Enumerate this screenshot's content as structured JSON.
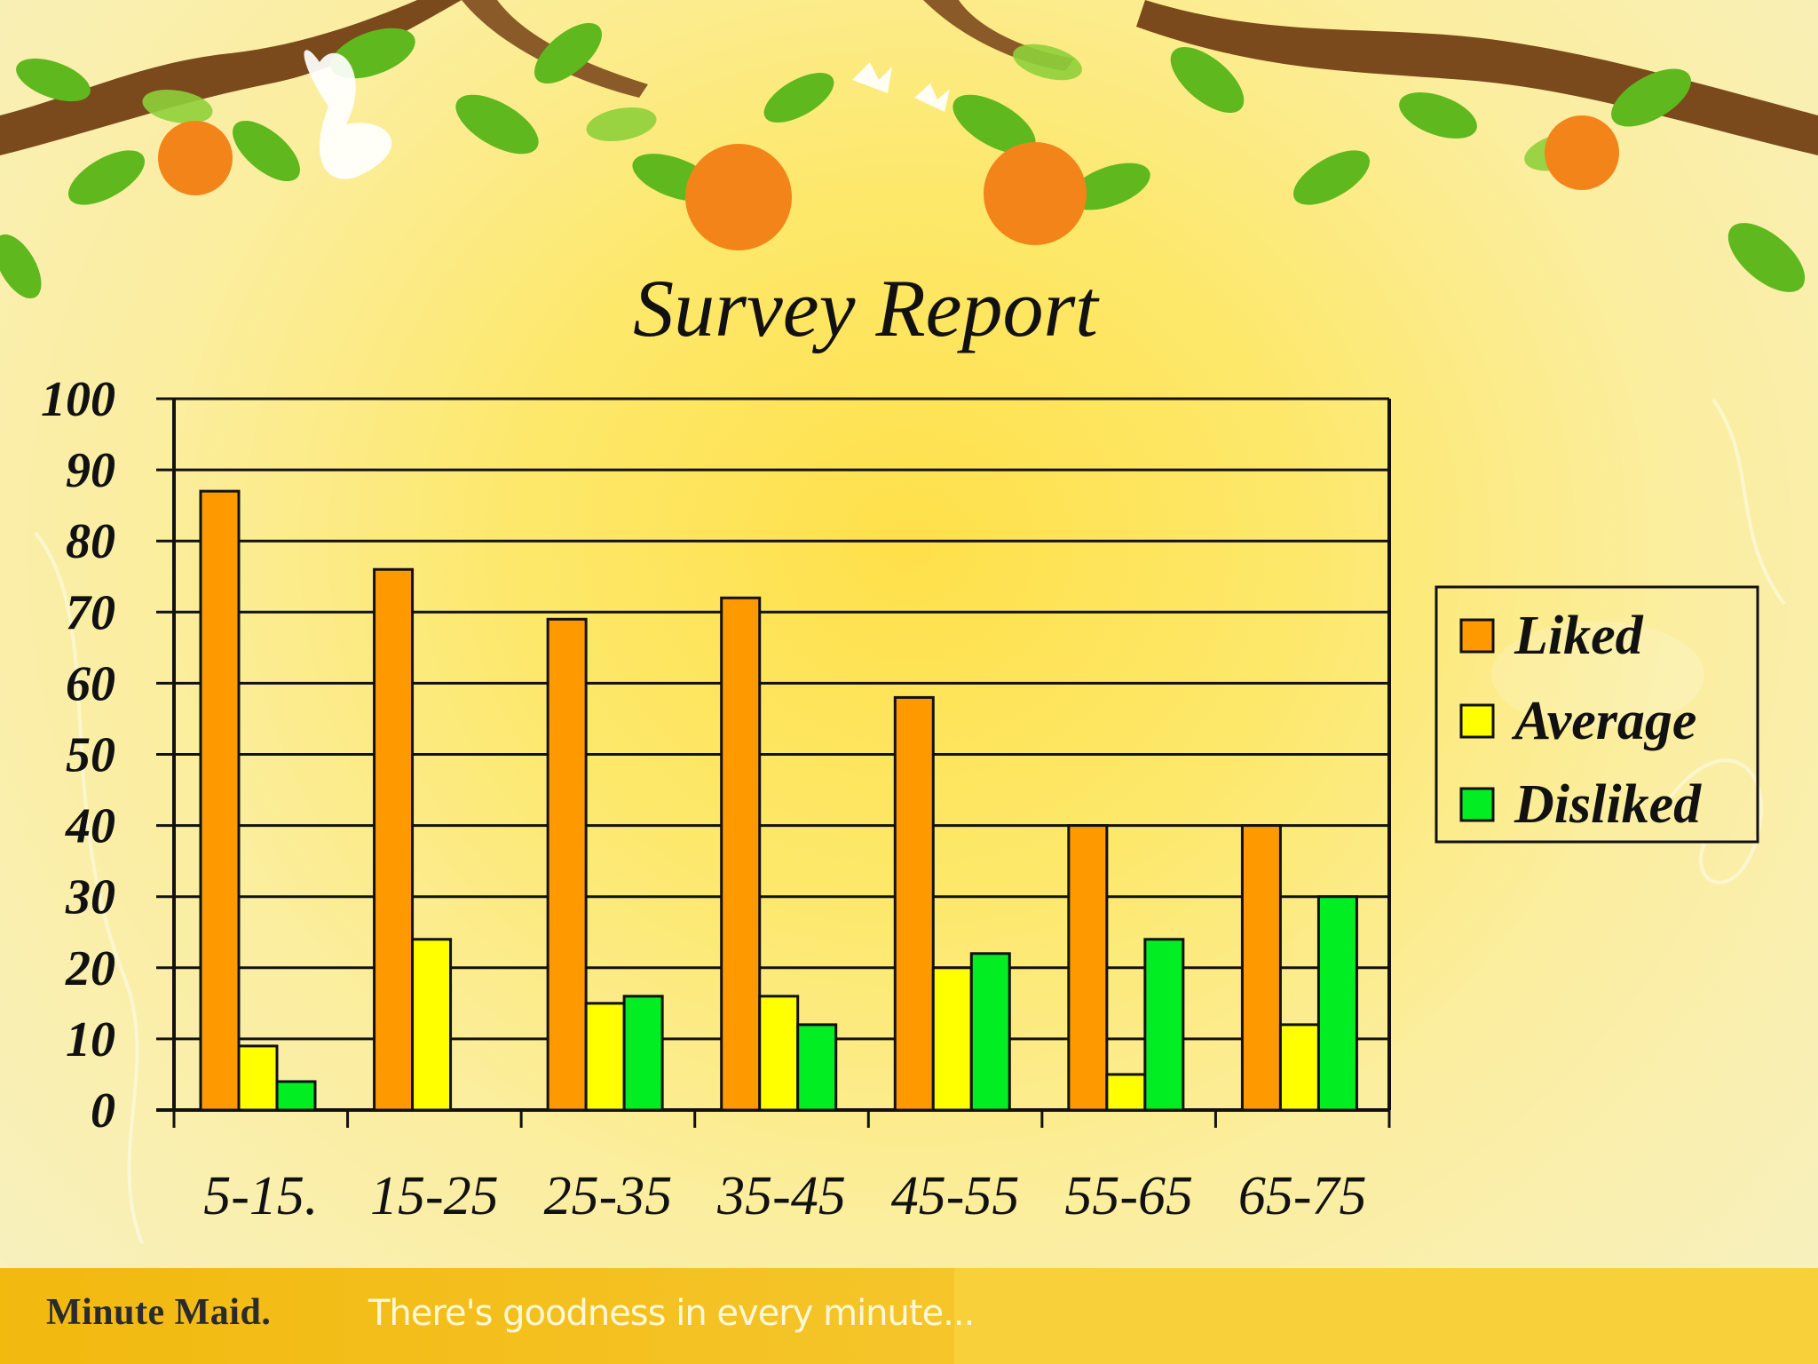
{
  "footer": {
    "brand": "Minute Maid.",
    "tagline": "There's goodness in every minute..."
  },
  "colors": {
    "liked": "#ff9900",
    "average": "#ffff00",
    "disliked": "#00ee22"
  },
  "chart_data": {
    "type": "bar",
    "title": "Survey Report",
    "categories": [
      "5-15.",
      "15-25",
      "25-35",
      "35-45",
      "45-55",
      "55-65",
      "65-75"
    ],
    "series": [
      {
        "name": "Liked",
        "values": [
          87,
          76,
          69,
          72,
          58,
          40,
          40
        ]
      },
      {
        "name": "Average",
        "values": [
          9,
          24,
          15,
          16,
          20,
          5,
          12
        ]
      },
      {
        "name": "Disliked",
        "values": [
          4,
          0,
          16,
          12,
          22,
          24,
          30
        ]
      }
    ],
    "yticks": [
      "0",
      "10",
      "20",
      "30",
      "40",
      "50",
      "60",
      "70",
      "80",
      "90",
      "100"
    ],
    "ylim": [
      0,
      100
    ],
    "grid": true,
    "legend": "right"
  }
}
